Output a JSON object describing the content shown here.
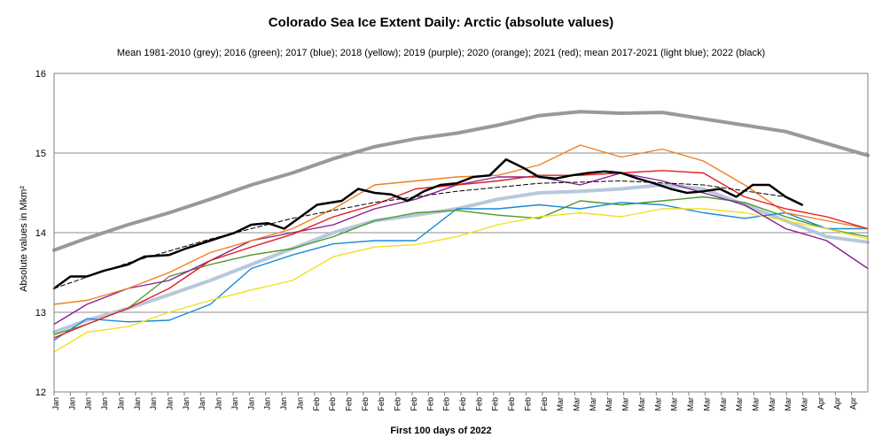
{
  "chart_data": {
    "type": "line",
    "title": "Colorado Sea Ice Extent Daily: Arctic (absolute values)",
    "subtitle": "Mean 1981-2010 (grey); 2016 (green); 2017 (blue); 2018 (yellow); 2019 (purple); 2020 (orange); 2021 (red); mean 2017-2021 (light blue); 2022 (black)",
    "xlabel": "First 100 days of 2022",
    "ylabel": "Absolute values in Mkm²",
    "ylim": [
      12,
      16
    ],
    "yticks": [
      "12",
      "13",
      "14",
      "15",
      "16"
    ],
    "xlim": [
      1,
      100
    ],
    "grid": true,
    "x_tick_labels": [
      "Jan",
      "Jan",
      "Jan",
      "Jan",
      "Jan",
      "Jan",
      "Jan",
      "Jan",
      "Jan",
      "Jan",
      "Jan",
      "Jan",
      "Jan",
      "Jan",
      "Jan",
      "Jan",
      "Feb",
      "Feb",
      "Feb",
      "Feb",
      "Feb",
      "Feb",
      "Feb",
      "Feb",
      "Feb",
      "Feb",
      "Feb",
      "Feb",
      "Feb",
      "Feb",
      "Feb",
      "Mar",
      "Mar",
      "Mar",
      "Mar",
      "Mar",
      "Mar",
      "Mar",
      "Mar",
      "Mar",
      "Mar",
      "Mar",
      "Mar",
      "Mar",
      "Mar",
      "Mar",
      "Mar",
      "Apr",
      "Apr",
      "Apr"
    ],
    "series": [
      {
        "name": "Mean 1981-2010",
        "color": "#999999",
        "width": 4,
        "x": [
          1,
          5,
          10,
          15,
          20,
          25,
          30,
          35,
          40,
          45,
          50,
          55,
          60,
          65,
          70,
          75,
          80,
          85,
          90,
          95,
          100
        ],
        "values": [
          13.78,
          13.93,
          14.1,
          14.25,
          14.42,
          14.6,
          14.75,
          14.93,
          15.08,
          15.18,
          15.25,
          15.35,
          15.47,
          15.52,
          15.5,
          15.51,
          15.43,
          15.35,
          15.27,
          15.12,
          14.97
        ]
      },
      {
        "name": "2016",
        "color": "#4a9a2a",
        "width": 1.4,
        "x": [
          1,
          5,
          10,
          15,
          20,
          25,
          30,
          35,
          40,
          45,
          50,
          55,
          60,
          65,
          70,
          75,
          80,
          85,
          90,
          95,
          100
        ],
        "values": [
          12.72,
          12.85,
          13.05,
          13.45,
          13.6,
          13.72,
          13.8,
          13.95,
          14.15,
          14.25,
          14.28,
          14.22,
          14.18,
          14.4,
          14.35,
          14.4,
          14.45,
          14.38,
          14.2,
          14.05,
          13.95
        ]
      },
      {
        "name": "2017",
        "color": "#1a8ad4",
        "width": 1.4,
        "x": [
          1,
          5,
          10,
          15,
          20,
          25,
          30,
          35,
          40,
          45,
          50,
          55,
          60,
          65,
          70,
          75,
          80,
          85,
          90,
          95,
          100
        ],
        "values": [
          12.65,
          12.92,
          12.88,
          12.9,
          13.1,
          13.55,
          13.72,
          13.86,
          13.9,
          13.9,
          14.3,
          14.3,
          14.35,
          14.3,
          14.38,
          14.35,
          14.25,
          14.18,
          14.25,
          14.05,
          14.05
        ]
      },
      {
        "name": "2018",
        "color": "#f0e020",
        "width": 1.4,
        "x": [
          1,
          5,
          10,
          15,
          20,
          25,
          30,
          35,
          40,
          45,
          50,
          55,
          60,
          65,
          70,
          75,
          80,
          85,
          90,
          95,
          100
        ],
        "values": [
          12.5,
          12.75,
          12.82,
          13.0,
          13.15,
          13.28,
          13.4,
          13.7,
          13.82,
          13.85,
          13.95,
          14.1,
          14.2,
          14.25,
          14.2,
          14.3,
          14.3,
          14.25,
          14.15,
          14.05,
          13.92
        ]
      },
      {
        "name": "2019",
        "color": "#8a2090",
        "width": 1.4,
        "x": [
          1,
          5,
          10,
          15,
          20,
          25,
          30,
          35,
          40,
          45,
          50,
          55,
          60,
          65,
          70,
          75,
          80,
          85,
          90,
          95,
          100
        ],
        "values": [
          12.85,
          13.1,
          13.3,
          13.4,
          13.65,
          13.9,
          14.0,
          14.1,
          14.3,
          14.42,
          14.6,
          14.7,
          14.7,
          14.6,
          14.75,
          14.65,
          14.5,
          14.35,
          14.05,
          13.9,
          13.55
        ]
      },
      {
        "name": "2020",
        "color": "#f08020",
        "width": 1.4,
        "x": [
          1,
          5,
          10,
          15,
          20,
          25,
          30,
          35,
          40,
          45,
          50,
          55,
          60,
          65,
          70,
          75,
          80,
          85,
          90,
          95,
          100
        ],
        "values": [
          13.1,
          13.15,
          13.3,
          13.5,
          13.75,
          13.9,
          14.05,
          14.3,
          14.6,
          14.65,
          14.7,
          14.72,
          14.85,
          15.1,
          14.95,
          15.05,
          14.9,
          14.6,
          14.25,
          14.15,
          14.05
        ]
      },
      {
        "name": "2021",
        "color": "#e02020",
        "width": 1.4,
        "x": [
          1,
          5,
          10,
          15,
          20,
          25,
          30,
          35,
          40,
          45,
          50,
          55,
          60,
          65,
          70,
          75,
          80,
          85,
          90,
          95,
          100
        ],
        "values": [
          12.68,
          12.85,
          13.05,
          13.3,
          13.65,
          13.82,
          13.98,
          14.2,
          14.35,
          14.55,
          14.6,
          14.65,
          14.72,
          14.72,
          14.75,
          14.78,
          14.75,
          14.45,
          14.3,
          14.2,
          14.05
        ]
      },
      {
        "name": "Mean 2017-2021",
        "color": "#b8c8dc",
        "width": 4,
        "x": [
          1,
          5,
          10,
          15,
          20,
          25,
          30,
          35,
          40,
          45,
          50,
          55,
          60,
          65,
          70,
          75,
          80,
          85,
          90,
          95,
          100
        ],
        "values": [
          12.75,
          12.9,
          13.05,
          13.22,
          13.4,
          13.6,
          13.8,
          14.0,
          14.15,
          14.22,
          14.3,
          14.42,
          14.5,
          14.52,
          14.55,
          14.6,
          14.55,
          14.35,
          14.15,
          13.95,
          13.88
        ]
      },
      {
        "name": "2022",
        "color": "#000000",
        "width": 2.5,
        "x": [
          1,
          3,
          5,
          7,
          10,
          12,
          15,
          17,
          20,
          23,
          25,
          27,
          29,
          31,
          33,
          36,
          38,
          40,
          42,
          44,
          46,
          48,
          50,
          52,
          54,
          56,
          58,
          60,
          62,
          64,
          66,
          68,
          70,
          72,
          74,
          76,
          78,
          80,
          82,
          84,
          86,
          88,
          90,
          92
        ],
        "values": [
          13.3,
          13.45,
          13.45,
          13.52,
          13.6,
          13.7,
          13.72,
          13.8,
          13.9,
          14.0,
          14.1,
          14.12,
          14.05,
          14.2,
          14.35,
          14.4,
          14.55,
          14.5,
          14.48,
          14.4,
          14.52,
          14.6,
          14.62,
          14.7,
          14.72,
          14.92,
          14.82,
          14.7,
          14.68,
          14.72,
          14.75,
          14.77,
          14.75,
          14.68,
          14.62,
          14.55,
          14.5,
          14.52,
          14.55,
          14.45,
          14.6,
          14.6,
          14.45,
          14.35
        ]
      },
      {
        "name": "Trend",
        "color": "#000000",
        "width": 1,
        "dash": "5,3",
        "x": [
          1,
          10,
          20,
          30,
          40,
          50,
          60,
          70,
          80,
          90
        ],
        "values": [
          13.3,
          13.62,
          13.92,
          14.18,
          14.38,
          14.52,
          14.62,
          14.65,
          14.6,
          14.45
        ]
      }
    ]
  }
}
